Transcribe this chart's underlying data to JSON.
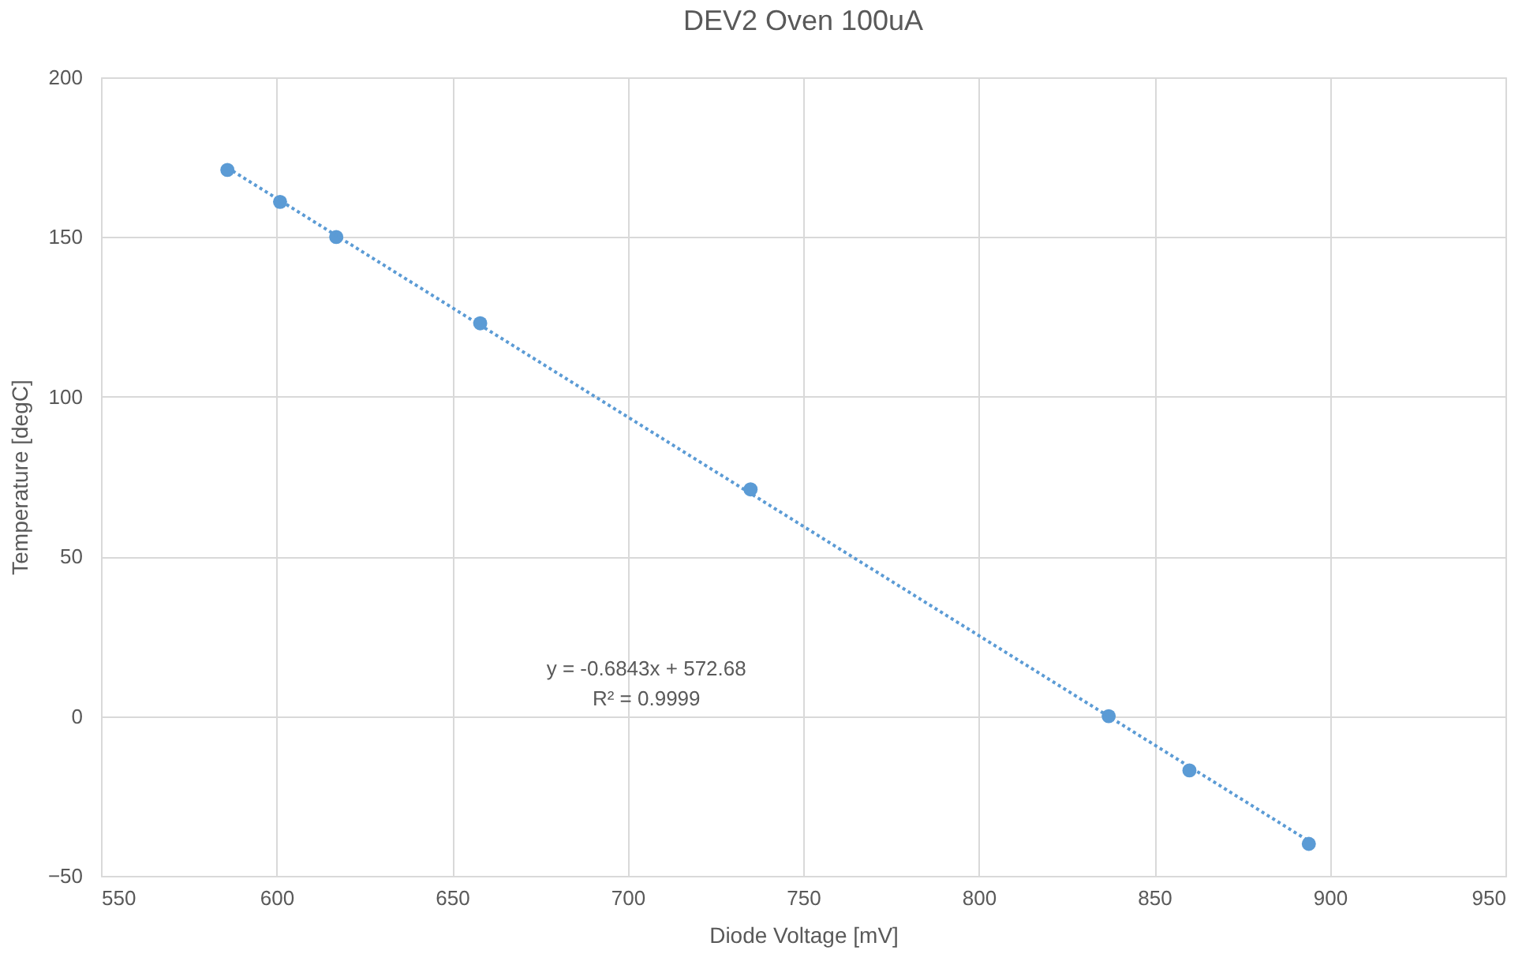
{
  "chart_data": {
    "type": "scatter",
    "title": "DEV2 Oven 100uA",
    "xlabel": "Diode Voltage [mV]",
    "ylabel": "Temperature [degC]",
    "xlim": [
      550,
      950
    ],
    "xticks": [
      550,
      600,
      650,
      700,
      750,
      800,
      850,
      900,
      950
    ],
    "ylim": [
      -50,
      200
    ],
    "yticks": [
      -50,
      0,
      50,
      100,
      150,
      200
    ],
    "grid": true,
    "marker": "circle",
    "series": [
      {
        "color": "#5b9bd5",
        "x": [
          586,
          601,
          617,
          658,
          735,
          837,
          860,
          894
        ],
        "values": [
          171,
          161,
          150,
          123,
          71,
          0,
          -17,
          -40
        ]
      },
      {
        "type": "line",
        "color": "#5b9bd5",
        "line_style": "dotted",
        "marker": "none",
        "x": [
          586,
          894
        ],
        "values": [
          171.7,
          -39.1
        ]
      }
    ],
    "annotations": [
      "y = -0.6843x + 572.68",
      "R² = 0.9999"
    ]
  }
}
